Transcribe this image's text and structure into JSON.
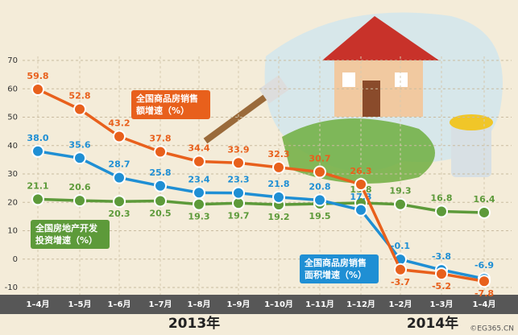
{
  "chart_data": {
    "type": "line",
    "categories": [
      "1–4月",
      "1–5月",
      "1–6月",
      "1–7月",
      "1–8月",
      "1–9月",
      "1–10月",
      "1–11月",
      "1–12月",
      "1–2月",
      "1–3月",
      "1–4月"
    ],
    "years": [
      "2013年",
      "2014年"
    ],
    "series": [
      {
        "name": "全国商品房销售额增速（%）",
        "color": "#e8601c",
        "values": [
          59.8,
          52.8,
          43.2,
          37.8,
          34.4,
          33.9,
          32.3,
          30.7,
          26.3,
          -3.7,
          -5.2,
          -7.8
        ],
        "value_labels": [
          "59.8",
          "52.8",
          "43.2",
          "37.8",
          "34.4",
          "33.9",
          "32.3",
          "30.7",
          "26.3",
          "-3.7",
          "-5.2",
          "-7.8"
        ]
      },
      {
        "name": "全国商品房销售面积增速（%）",
        "color": "#1f8fd4",
        "values": [
          38.0,
          35.6,
          28.7,
          25.8,
          23.4,
          23.3,
          21.8,
          20.8,
          17.3,
          -0.1,
          -3.8,
          -6.9
        ],
        "value_labels": [
          "38.0",
          "35.6",
          "28.7",
          "25.8",
          "23.4",
          "23.3",
          "21.8",
          "20.8",
          "17.3",
          "-0.1",
          "-3.8",
          "-6.9"
        ]
      },
      {
        "name": "全国房地产开发投资增速（%）",
        "color": "#5d9a3a",
        "values": [
          21.1,
          20.6,
          20.3,
          20.5,
          19.3,
          19.7,
          19.2,
          19.5,
          19.8,
          19.3,
          16.8,
          16.4
        ],
        "value_labels": [
          "21.1",
          "20.6",
          "20.3",
          "20.5",
          "19.3",
          "19.7",
          "19.2",
          "19.5",
          "19.8",
          "19.3",
          "16.8",
          "16.4"
        ]
      }
    ],
    "ylim": [
      -10,
      70
    ],
    "yticks": [
      -10,
      0,
      10,
      20,
      30,
      40,
      50,
      60,
      70
    ],
    "grid": true,
    "watermark": "©EG365.CN"
  }
}
